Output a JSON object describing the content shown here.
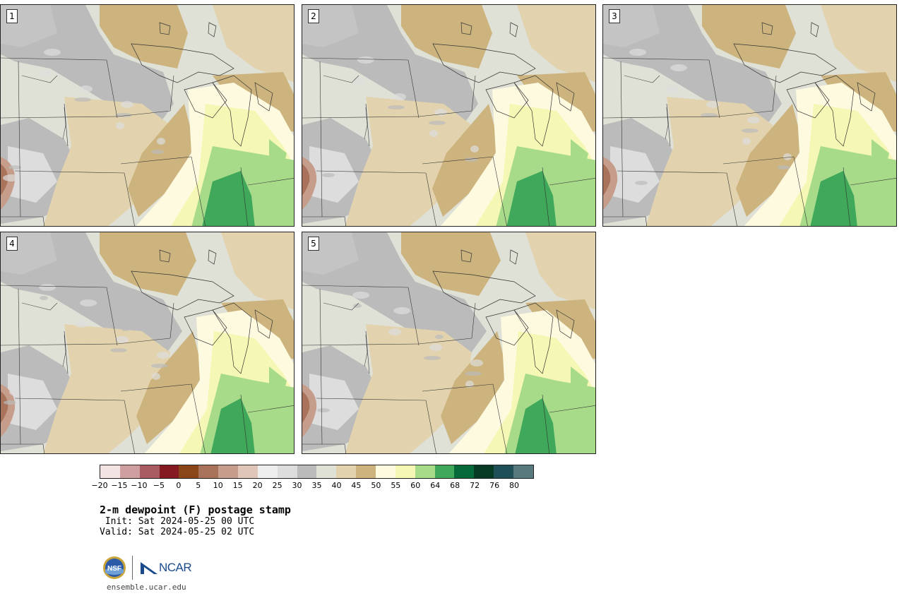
{
  "panels": [
    {
      "number": "1"
    },
    {
      "number": "2"
    },
    {
      "number": "3"
    },
    {
      "number": "4"
    },
    {
      "number": "5"
    }
  ],
  "colorbar": {
    "colors": [
      "#f3e4e4",
      "#cf9ea0",
      "#a85c62",
      "#861a22",
      "#8a4518",
      "#a9725a",
      "#c59d8a",
      "#dfc6b8",
      "#eeeeee",
      "#dddddd",
      "#bbbbbb",
      "#dfe0d6",
      "#e2d3ae",
      "#cdb47e",
      "#fefae0",
      "#f5f7b4",
      "#a7db8a",
      "#3fa85a",
      "#05693a",
      "#063a24",
      "#1f5058",
      "#587a7e"
    ],
    "ticks": [
      "−20",
      "−15",
      "−10",
      "−5",
      "0",
      "5",
      "10",
      "15",
      "20",
      "25",
      "30",
      "35",
      "40",
      "45",
      "50",
      "55",
      "60",
      "64",
      "68",
      "72",
      "76",
      "80"
    ]
  },
  "title": "2-m dewpoint (F) postage stamp",
  "init": " Init: Sat 2024-05-25 00 UTC",
  "valid": "Valid: Sat 2024-05-25 02 UTC",
  "footer": {
    "nsf_logo_text": "NSF",
    "ncar_logo_text": "NCAR",
    "url": "ensemble.ucar.edu"
  }
}
